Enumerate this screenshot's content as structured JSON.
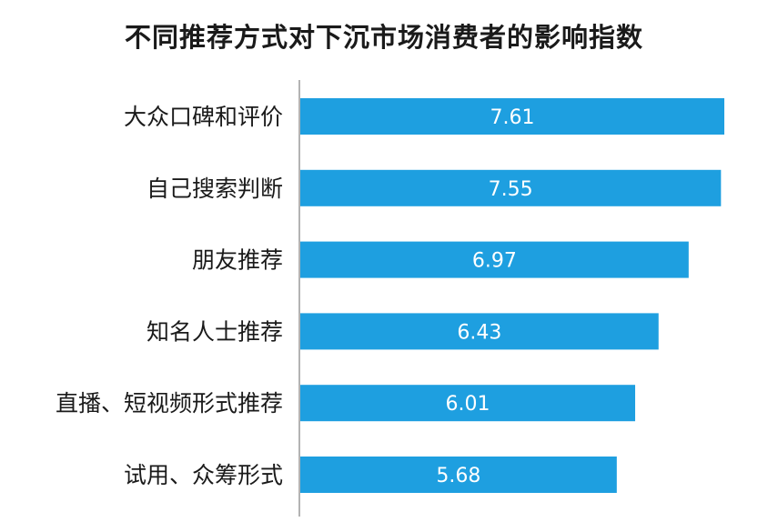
{
  "chart_data": {
    "type": "bar",
    "orientation": "horizontal",
    "title": "不同推荐方式对下沉市场消费者的影响指数",
    "categories": [
      "大众口碑和评价",
      "自己搜索判断",
      "朋友推荐",
      "知名人士推荐",
      "直播、短视频形式推荐",
      "试用、众筹形式"
    ],
    "values": [
      7.61,
      7.55,
      6.97,
      6.43,
      6.01,
      5.68
    ],
    "value_labels": [
      "7.61",
      "7.55",
      "6.97",
      "6.43",
      "6.01",
      "5.68"
    ],
    "xlabel": "",
    "ylabel": "",
    "xlim": [
      0,
      7.61
    ],
    "grid": false,
    "legend": "none",
    "bar_color": "#1e9fe0",
    "axis_color": "#9a9a9a"
  }
}
